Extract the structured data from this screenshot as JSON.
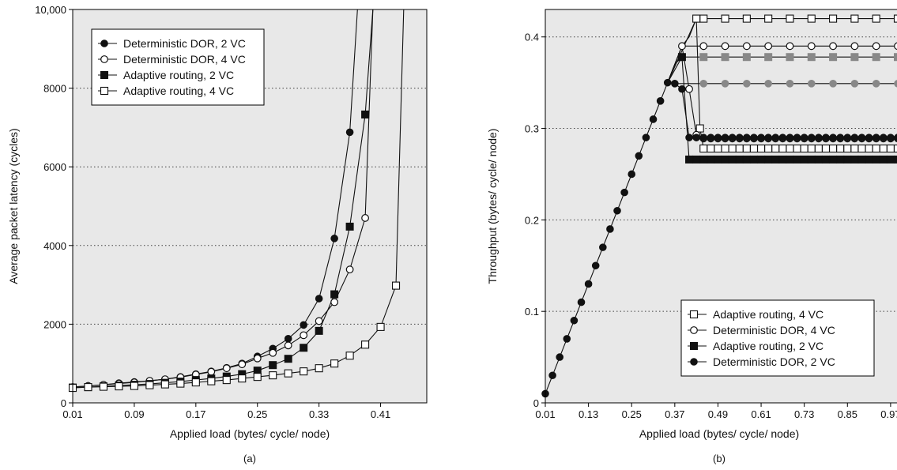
{
  "chart_data": [
    {
      "type": "line",
      "panel_label": "(a)",
      "xlabel": "Applied load (bytes/ cycle/ node)",
      "ylabel": "Average packet latency (cycles)",
      "xlim": [
        0.01,
        0.47
      ],
      "ylim": [
        0,
        10000
      ],
      "x_ticks": [
        0.01,
        0.09,
        0.17,
        0.25,
        0.33,
        0.41
      ],
      "x_tick_labels": [
        "0.01",
        "0.09",
        "0.17",
        "0.25",
        "0.33",
        "0.41"
      ],
      "y_ticks": [
        0,
        2000,
        4000,
        6000,
        8000,
        10000
      ],
      "y_tick_labels": [
        "0",
        "2000",
        "4000",
        "6000",
        "8000",
        "10,000"
      ],
      "grid": "horizontal-dotted",
      "legend_position": "top-left",
      "series": [
        {
          "name": "Deterministic DOR, 2 VC",
          "marker": "filled-circle",
          "x": [
            0.01,
            0.03,
            0.05,
            0.07,
            0.09,
            0.11,
            0.13,
            0.15,
            0.17,
            0.19,
            0.21,
            0.23,
            0.25,
            0.27,
            0.29,
            0.31,
            0.33,
            0.35,
            0.37,
            0.38
          ],
          "y": [
            400,
            430,
            460,
            500,
            530,
            560,
            600,
            660,
            730,
            800,
            890,
            1000,
            1180,
            1380,
            1630,
            1980,
            2650,
            4180,
            6880,
            10000
          ]
        },
        {
          "name": "Deterministic DOR, 4 VC",
          "marker": "open-circle",
          "x": [
            0.01,
            0.03,
            0.05,
            0.07,
            0.09,
            0.11,
            0.13,
            0.15,
            0.17,
            0.19,
            0.21,
            0.23,
            0.25,
            0.27,
            0.29,
            0.31,
            0.33,
            0.35,
            0.37,
            0.39,
            0.4
          ],
          "y": [
            400,
            430,
            460,
            490,
            520,
            560,
            600,
            650,
            720,
            790,
            880,
            980,
            1130,
            1270,
            1460,
            1720,
            2080,
            2560,
            3390,
            4700,
            10000
          ]
        },
        {
          "name": "Adaptive routing, 2 VC",
          "marker": "filled-square",
          "x": [
            0.01,
            0.03,
            0.05,
            0.07,
            0.09,
            0.11,
            0.13,
            0.15,
            0.17,
            0.19,
            0.21,
            0.23,
            0.25,
            0.27,
            0.29,
            0.31,
            0.33,
            0.35,
            0.37,
            0.39,
            0.4
          ],
          "y": [
            390,
            400,
            420,
            440,
            460,
            480,
            510,
            540,
            580,
            620,
            670,
            730,
            820,
            960,
            1120,
            1400,
            1830,
            2760,
            4480,
            7330,
            10000
          ]
        },
        {
          "name": "Adaptive routing, 4 VC",
          "marker": "open-square",
          "x": [
            0.01,
            0.03,
            0.05,
            0.07,
            0.09,
            0.11,
            0.13,
            0.15,
            0.17,
            0.19,
            0.21,
            0.23,
            0.25,
            0.27,
            0.29,
            0.31,
            0.33,
            0.35,
            0.37,
            0.39,
            0.41,
            0.43,
            0.44
          ],
          "y": [
            380,
            400,
            410,
            420,
            430,
            450,
            470,
            490,
            520,
            550,
            580,
            620,
            660,
            700,
            750,
            800,
            880,
            1000,
            1200,
            1480,
            1930,
            2980,
            10000
          ]
        }
      ]
    },
    {
      "type": "line",
      "panel_label": "(b)",
      "xlabel": "Applied load (bytes/ cycle/ node)",
      "ylabel": "Throughput (bytes/ cycle/ node)",
      "xlim": [
        0.01,
        0.99
      ],
      "ylim": [
        0,
        0.43
      ],
      "x_ticks": [
        0.01,
        0.13,
        0.25,
        0.37,
        0.49,
        0.61,
        0.73,
        0.85,
        0.97
      ],
      "x_tick_labels": [
        "0.01",
        "0.13",
        "0.25",
        "0.37",
        "0.49",
        "0.61",
        "0.73",
        "0.85",
        "0.97"
      ],
      "y_ticks": [
        0,
        0.1,
        0.2,
        0.3,
        0.4
      ],
      "y_tick_labels": [
        "0",
        "0.1",
        "0.2",
        "0.3",
        "0.4"
      ],
      "grid": "horizontal-dotted",
      "legend_position": "bottom-right",
      "ramp": {
        "x": [
          0.01,
          0.03,
          0.05,
          0.07,
          0.09,
          0.11,
          0.13,
          0.15,
          0.17,
          0.19,
          0.21,
          0.23,
          0.25,
          0.27,
          0.29,
          0.31,
          0.33,
          0.35
        ],
        "y": [
          0.01,
          0.03,
          0.05,
          0.07,
          0.09,
          0.11,
          0.13,
          0.15,
          0.17,
          0.19,
          0.21,
          0.23,
          0.25,
          0.27,
          0.29,
          0.31,
          0.33,
          0.35
        ]
      },
      "saturated_lines": [
        {
          "x": [
            0.35,
            0.37,
            0.39,
            0.41,
            0.43,
            0.45,
            0.51,
            0.57,
            0.63,
            0.69,
            0.75,
            0.81,
            0.87,
            0.93,
            0.99
          ],
          "y": [
            0.35,
            0.37,
            0.39,
            0.4,
            0.42,
            0.42,
            0.42,
            0.42,
            0.42,
            0.42,
            0.42,
            0.42,
            0.42,
            0.42,
            0.42
          ],
          "marker": "open-square"
        },
        {
          "x": [
            0.35,
            0.37,
            0.39,
            0.41,
            0.43,
            0.45,
            0.51,
            0.57,
            0.63,
            0.69,
            0.75,
            0.81,
            0.87,
            0.93,
            0.99
          ],
          "y": [
            0.35,
            0.37,
            0.39,
            0.39,
            0.39,
            0.39,
            0.39,
            0.39,
            0.39,
            0.39,
            0.39,
            0.39,
            0.39,
            0.39,
            0.39
          ],
          "marker": "open-circle"
        },
        {
          "x": [
            0.35,
            0.37,
            0.39,
            0.41,
            0.45,
            0.51,
            0.57,
            0.63,
            0.69,
            0.75,
            0.81,
            0.87,
            0.93,
            0.99
          ],
          "y": [
            0.35,
            0.37,
            0.378,
            0.378,
            0.378,
            0.378,
            0.378,
            0.378,
            0.378,
            0.378,
            0.378,
            0.378,
            0.378,
            0.378
          ],
          "marker": "filled-square-gray"
        },
        {
          "x": [
            0.35,
            0.37,
            0.39,
            0.45,
            0.51,
            0.57,
            0.63,
            0.69,
            0.75,
            0.81,
            0.87,
            0.93,
            0.99
          ],
          "y": [
            0.35,
            0.349,
            0.349,
            0.349,
            0.349,
            0.349,
            0.349,
            0.349,
            0.349,
            0.349,
            0.349,
            0.349,
            0.349
          ],
          "marker": "filled-circle-gray"
        }
      ],
      "series": [
        {
          "name": "Adaptive routing, 4 VC",
          "marker": "open-square",
          "x": [
            0.43,
            0.44,
            0.45,
            0.47,
            0.49,
            0.51,
            0.53,
            0.55,
            0.57,
            0.59,
            0.61,
            0.63,
            0.65,
            0.67,
            0.69,
            0.71,
            0.73,
            0.75,
            0.77,
            0.79,
            0.81,
            0.83,
            0.85,
            0.87,
            0.89,
            0.91,
            0.93,
            0.95,
            0.97,
            0.99
          ],
          "y": [
            0.42,
            0.3,
            0.278,
            0.278,
            0.278,
            0.278,
            0.278,
            0.278,
            0.278,
            0.278,
            0.278,
            0.278,
            0.278,
            0.278,
            0.278,
            0.278,
            0.278,
            0.278,
            0.278,
            0.278,
            0.278,
            0.278,
            0.278,
            0.278,
            0.278,
            0.278,
            0.278,
            0.278,
            0.278,
            0.278
          ]
        },
        {
          "name": "Deterministic DOR, 4 VC",
          "marker": "open-circle",
          "x": [
            0.39,
            0.41,
            0.43,
            0.45,
            0.47,
            0.49,
            0.51,
            0.53,
            0.55,
            0.57,
            0.59,
            0.61,
            0.63,
            0.65,
            0.67,
            0.69,
            0.71,
            0.73,
            0.75,
            0.77,
            0.79,
            0.81,
            0.83,
            0.85,
            0.87,
            0.89,
            0.91,
            0.93,
            0.95,
            0.97,
            0.99
          ],
          "y": [
            0.39,
            0.343,
            0.293,
            0.289,
            0.289,
            0.289,
            0.289,
            0.289,
            0.289,
            0.289,
            0.289,
            0.289,
            0.289,
            0.289,
            0.289,
            0.289,
            0.289,
            0.289,
            0.289,
            0.289,
            0.289,
            0.289,
            0.289,
            0.289,
            0.289,
            0.289,
            0.289,
            0.289,
            0.289,
            0.289,
            0.289
          ]
        },
        {
          "name": "Adaptive routing, 2 VC",
          "marker": "filled-square",
          "x": [
            0.39,
            0.41,
            0.43,
            0.45,
            0.47,
            0.49,
            0.51,
            0.53,
            0.55,
            0.57,
            0.59,
            0.61,
            0.63,
            0.65,
            0.67,
            0.69,
            0.71,
            0.73,
            0.75,
            0.77,
            0.79,
            0.81,
            0.83,
            0.85,
            0.87,
            0.89,
            0.91,
            0.93,
            0.95,
            0.97,
            0.99
          ],
          "y": [
            0.378,
            0.266,
            0.266,
            0.266,
            0.266,
            0.266,
            0.266,
            0.266,
            0.266,
            0.266,
            0.266,
            0.266,
            0.266,
            0.266,
            0.266,
            0.266,
            0.266,
            0.266,
            0.266,
            0.266,
            0.266,
            0.266,
            0.266,
            0.266,
            0.266,
            0.266,
            0.266,
            0.266,
            0.266,
            0.266,
            0.266
          ]
        },
        {
          "name": "Deterministic DOR, 2 VC",
          "marker": "filled-circle",
          "x": [
            0.37,
            0.39,
            0.41,
            0.43,
            0.45,
            0.47,
            0.49,
            0.51,
            0.53,
            0.55,
            0.57,
            0.59,
            0.61,
            0.63,
            0.65,
            0.67,
            0.69,
            0.71,
            0.73,
            0.75,
            0.77,
            0.79,
            0.81,
            0.83,
            0.85,
            0.87,
            0.89,
            0.91,
            0.93,
            0.95,
            0.97,
            0.99
          ],
          "y": [
            0.349,
            0.343,
            0.29,
            0.29,
            0.29,
            0.29,
            0.29,
            0.29,
            0.29,
            0.29,
            0.29,
            0.29,
            0.29,
            0.29,
            0.29,
            0.29,
            0.29,
            0.29,
            0.29,
            0.29,
            0.29,
            0.29,
            0.29,
            0.29,
            0.29,
            0.29,
            0.29,
            0.29,
            0.29,
            0.29,
            0.29,
            0.29
          ]
        }
      ]
    }
  ]
}
